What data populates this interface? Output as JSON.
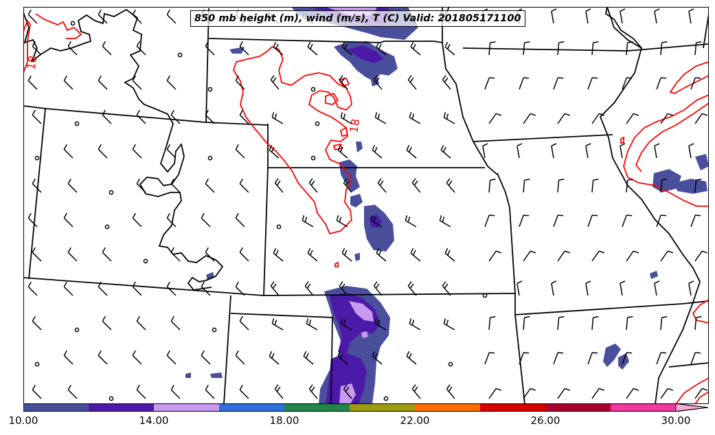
{
  "title": "850 mb height (m), wind (m/s), T (C) Valid: 201805171100",
  "contour_labels": [
    {
      "text": "18",
      "color": "#ff0000"
    },
    {
      "text": "18",
      "color": "#ff0000"
    }
  ],
  "colorbar": {
    "labels": [
      "10.00",
      "14.00",
      "18.00",
      "22.00",
      "26.00",
      "30.00"
    ],
    "bins": [
      {
        "from": 10,
        "to": 12,
        "color": "#4a4f9c"
      },
      {
        "from": 12,
        "to": 14,
        "color": "#4b1aa8"
      },
      {
        "from": 14,
        "to": 16,
        "color": "#c79af0"
      },
      {
        "from": 16,
        "to": 18,
        "color": "#2f6fde"
      },
      {
        "from": 18,
        "to": 20,
        "color": "#21854a"
      },
      {
        "from": 20,
        "to": 22,
        "color": "#9c9a12"
      },
      {
        "from": 22,
        "to": 24,
        "color": "#ff6f00"
      },
      {
        "from": 24,
        "to": 26,
        "color": "#d80000"
      },
      {
        "from": 26,
        "to": 28,
        "color": "#a8002e"
      },
      {
        "from": 28,
        "to": 30,
        "color": "#f0379e"
      },
      {
        "from": 30,
        "to": 32,
        "color": "#f7a8d8"
      }
    ]
  },
  "colors": {
    "temperature_contour": "#ff0000",
    "state_borders": "#000000",
    "height_contour": "#000000"
  }
}
